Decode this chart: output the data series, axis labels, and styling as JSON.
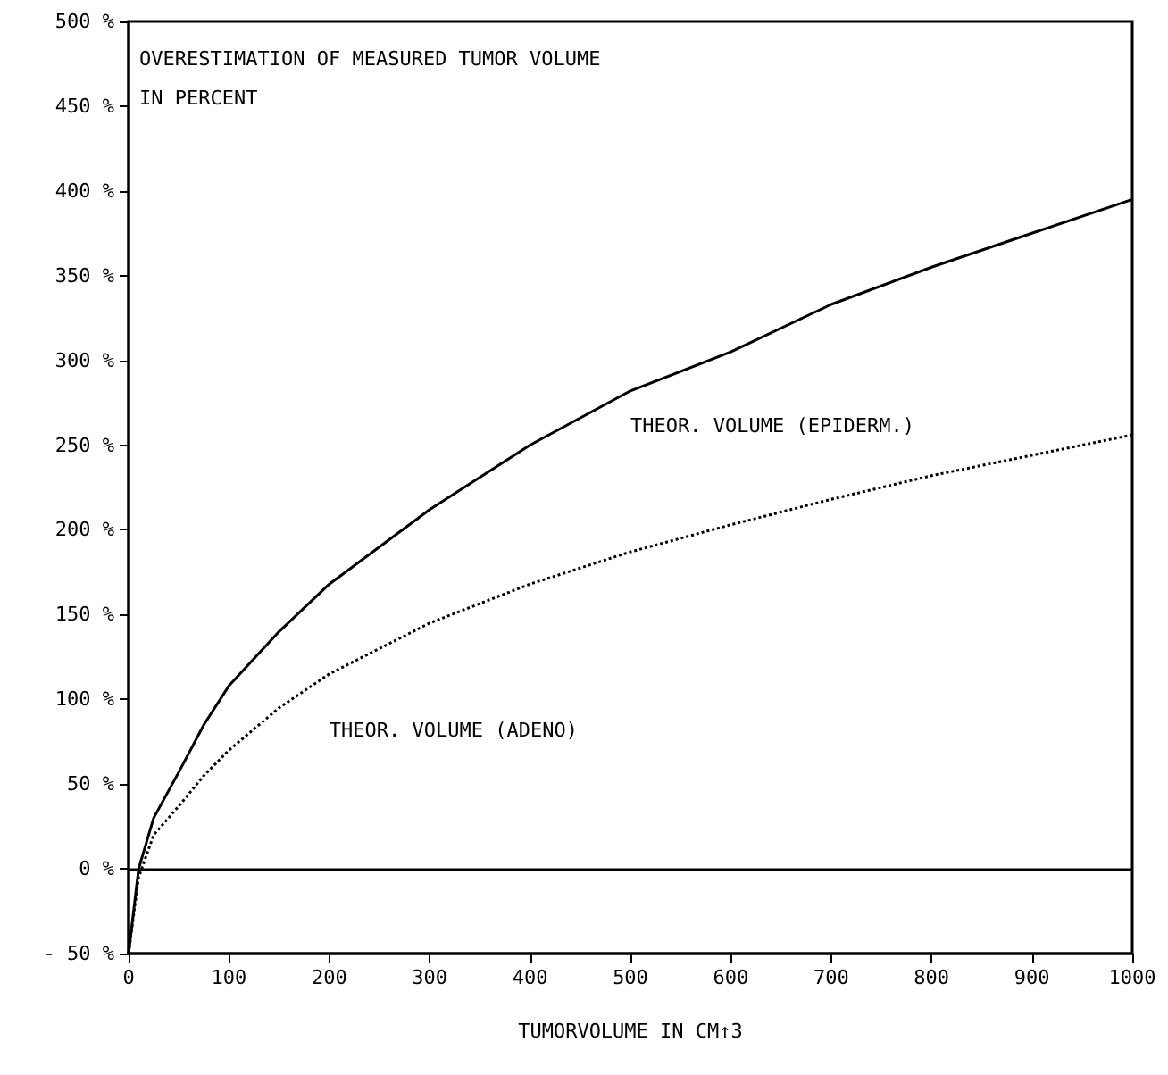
{
  "chart_data": {
    "type": "line",
    "title": "OVERESTIMATION OF MEASURED TUMOR VOLUME\nIN PERCENT",
    "xlabel": "TUMORVOLUME IN CM↑3",
    "x": [
      0,
      10,
      25,
      50,
      75,
      100,
      150,
      200,
      250,
      300,
      400,
      500,
      600,
      700,
      800,
      900,
      1000
    ],
    "series": [
      {
        "name": "THEOR. VOLUME (EPIDERM.)",
        "color": "#000000",
        "line_style": "solid",
        "values": [
          -50,
          0,
          30,
          57,
          85,
          108,
          140,
          168,
          190,
          212,
          250,
          282,
          305,
          333,
          355,
          375,
          395
        ]
      },
      {
        "name": "THEOR. VOLUME (ADENO)",
        "color": "#000000",
        "line_style": "dotted",
        "values": [
          -50,
          -5,
          20,
          37,
          55,
          70,
          95,
          115,
          130,
          145,
          168,
          187,
          203,
          218,
          232,
          244,
          256
        ]
      }
    ],
    "xlim": [
      0,
      1000
    ],
    "xticks": [
      0,
      100,
      200,
      300,
      400,
      500,
      600,
      700,
      800,
      900,
      1000
    ],
    "ylim": [
      -50,
      500
    ],
    "yticks": [
      {
        "value": -50,
        "label": "- 50 %"
      },
      {
        "value": 0,
        "label": "0 %"
      },
      {
        "value": 50,
        "label": "50 %"
      },
      {
        "value": 100,
        "label": "100 %"
      },
      {
        "value": 150,
        "label": "150 %"
      },
      {
        "value": 200,
        "label": "200 %"
      },
      {
        "value": 250,
        "label": "250 %"
      },
      {
        "value": 300,
        "label": "300 %"
      },
      {
        "value": 350,
        "label": "350 %"
      },
      {
        "value": 400,
        "label": "400 %"
      },
      {
        "value": 450,
        "label": "450 %"
      },
      {
        "value": 500,
        "label": "500 %"
      }
    ],
    "ref_lines": [
      {
        "axis": "y",
        "value": 0,
        "color": "#000000",
        "line_style": "solid"
      }
    ],
    "grid": false,
    "legend": false,
    "marker": "none"
  }
}
